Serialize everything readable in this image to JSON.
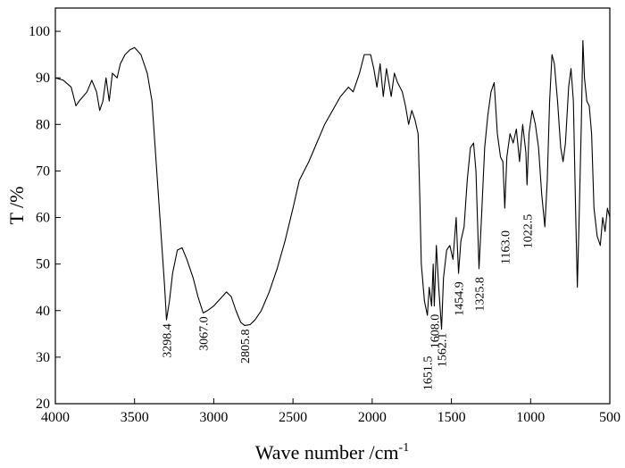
{
  "chart_data": {
    "type": "line",
    "x_label": {
      "text": "Wave number /cm",
      "superscript": "-1"
    },
    "y_label": "T /%",
    "xlim": [
      4000,
      500
    ],
    "ylim": [
      20,
      105
    ],
    "xticks": [
      4000,
      3500,
      3000,
      2500,
      2000,
      1500,
      1000,
      500
    ],
    "yticks": [
      20,
      30,
      40,
      50,
      60,
      70,
      80,
      90,
      100
    ],
    "x": [
      4000,
      3950,
      3900,
      3870,
      3850,
      3800,
      3770,
      3740,
      3720,
      3700,
      3680,
      3660,
      3640,
      3610,
      3590,
      3560,
      3530,
      3500,
      3460,
      3420,
      3390,
      3370,
      3350,
      3330,
      3310,
      3298.4,
      3280,
      3260,
      3230,
      3200,
      3170,
      3130,
      3100,
      3067,
      3040,
      3000,
      2960,
      2920,
      2890,
      2860,
      2830,
      2805.8,
      2770,
      2740,
      2700,
      2650,
      2600,
      2550,
      2500,
      2460,
      2400,
      2350,
      2300,
      2250,
      2200,
      2150,
      2120,
      2080,
      2050,
      2010,
      1990,
      1970,
      1950,
      1930,
      1910,
      1880,
      1860,
      1840,
      1810,
      1790,
      1770,
      1750,
      1730,
      1710,
      1700,
      1690,
      1670,
      1651.5,
      1640,
      1625,
      1615,
      1608,
      1595,
      1580,
      1562.1,
      1550,
      1530,
      1510,
      1490,
      1470,
      1454.9,
      1440,
      1420,
      1400,
      1380,
      1360,
      1345,
      1325.8,
      1310,
      1290,
      1270,
      1250,
      1230,
      1210,
      1190,
      1175,
      1163,
      1150,
      1130,
      1110,
      1090,
      1070,
      1050,
      1030,
      1022.5,
      1010,
      990,
      970,
      950,
      930,
      910,
      895,
      880,
      865,
      850,
      830,
      810,
      795,
      780,
      760,
      745,
      730,
      715,
      705,
      695,
      680,
      670,
      660,
      645,
      630,
      615,
      600,
      580,
      560,
      545,
      530,
      515,
      500
    ],
    "series": [
      {
        "color": "#000000",
        "values": [
          90,
          89.5,
          88,
          84,
          85,
          87,
          89.5,
          87,
          83,
          85,
          90,
          85,
          91,
          90,
          93,
          95,
          96,
          96.5,
          95,
          91,
          85,
          75,
          65,
          55,
          45,
          38,
          42,
          48,
          53,
          53.5,
          51,
          47,
          43,
          39.5,
          40,
          41,
          42.5,
          44,
          43,
          40,
          37.5,
          36.8,
          37,
          38,
          40,
          44,
          49,
          55,
          62,
          68,
          72,
          76,
          80,
          83,
          86,
          88,
          87,
          91,
          95,
          95,
          92,
          88,
          93,
          86,
          92,
          86,
          91,
          89,
          87,
          84,
          80,
          83,
          81,
          78,
          65,
          50,
          42,
          39,
          45,
          41,
          50,
          41,
          54,
          45,
          36,
          47,
          53,
          54,
          51,
          60,
          48,
          55,
          58,
          68,
          75,
          76,
          70,
          49,
          60,
          75,
          82,
          87,
          89,
          78,
          73,
          72,
          62,
          73,
          78,
          76,
          79,
          72,
          80,
          74,
          67,
          78,
          83,
          80,
          75,
          65,
          58,
          68,
          85,
          95,
          93,
          85,
          75,
          72,
          76,
          88,
          92,
          85,
          60,
          45,
          58,
          80,
          98,
          90,
          85,
          84,
          78,
          62,
          56,
          54,
          60,
          57,
          62,
          60
        ]
      }
    ],
    "annotations": [
      {
        "label": "3298.4",
        "x": 3298.4,
        "y": 38
      },
      {
        "label": "3067.0",
        "x": 3067.0,
        "y": 39.5
      },
      {
        "label": "2805.8",
        "x": 2805.8,
        "y": 36.8
      },
      {
        "label": "1651.5",
        "x": 1651.5,
        "y": 31
      },
      {
        "label": "1608.0",
        "x": 1608.0,
        "y": 40
      },
      {
        "label": "1562.1",
        "x": 1562.1,
        "y": 36
      },
      {
        "label": "1454.9",
        "x": 1454.9,
        "y": 47
      },
      {
        "label": "1325.8",
        "x": 1325.8,
        "y": 48
      },
      {
        "label": "1163.0",
        "x": 1163.0,
        "y": 58
      },
      {
        "label": "1022.5",
        "x": 1022.5,
        "y": 61.5
      }
    ]
  }
}
